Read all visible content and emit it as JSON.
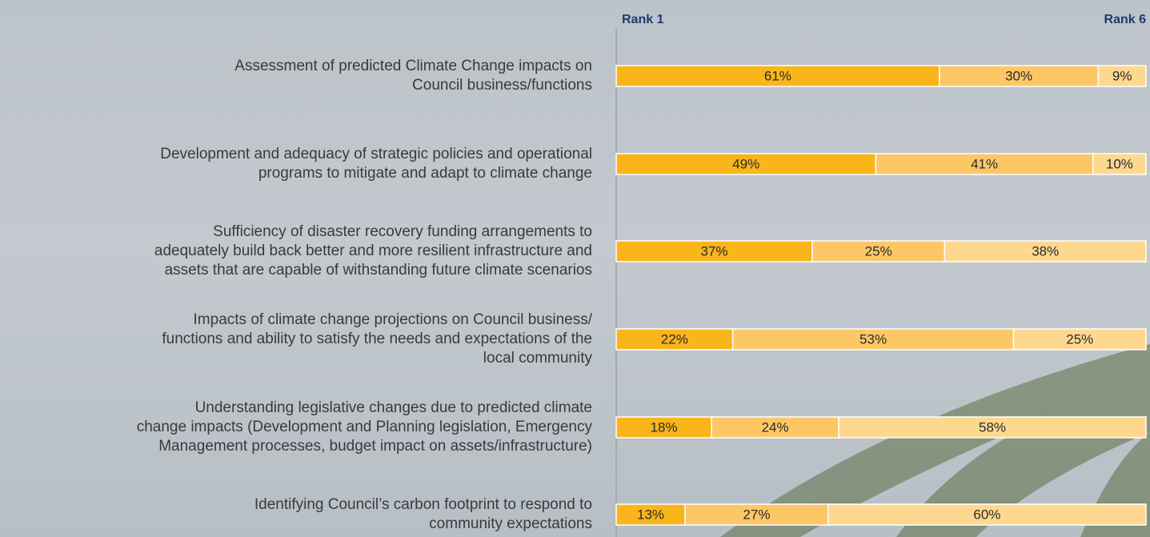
{
  "chart_data": {
    "type": "stacked-bar-horizontal",
    "axis_start_label": "Rank 1",
    "axis_end_label": "Rank 6",
    "categories": [
      "Assessment of predicted Climate Change impacts on Council business/functions",
      "Development and adequacy of strategic policies and operational programs to mitigate and adapt to climate change",
      "Sufficiency of disaster recovery funding arrangements to adequately build back better and more resilient infrastructure and assets that are capable of withstanding future climate scenarios",
      "Impacts of climate change projections on Council business/ functions and ability to satisfy the needs and expectations of the local community",
      "Understanding legislative changes due to predicted climate change impacts (Development and Planning legislation, Emergency Management processes, budget impact on assets/infrastructure)",
      "Identifying Council’s carbon footprint to respond to community expectations"
    ],
    "series": [
      {
        "color": "#f9b51a",
        "values": [
          61,
          49,
          37,
          22,
          18,
          13
        ],
        "value_labels": [
          "61%",
          "49%",
          "37%",
          "22%",
          "18%",
          "13%"
        ]
      },
      {
        "color": "#fdc766",
        "values": [
          30,
          41,
          25,
          53,
          24,
          27
        ],
        "value_labels": [
          "30%",
          "41%",
          "25%",
          "53%",
          "24%",
          "27%"
        ]
      },
      {
        "color": "#fed88f",
        "values": [
          9,
          10,
          38,
          25,
          58,
          60
        ],
        "value_labels": [
          "9%",
          "10%",
          "38%",
          "25%",
          "58%",
          "60%"
        ]
      }
    ],
    "xlim": [
      0,
      100
    ]
  }
}
